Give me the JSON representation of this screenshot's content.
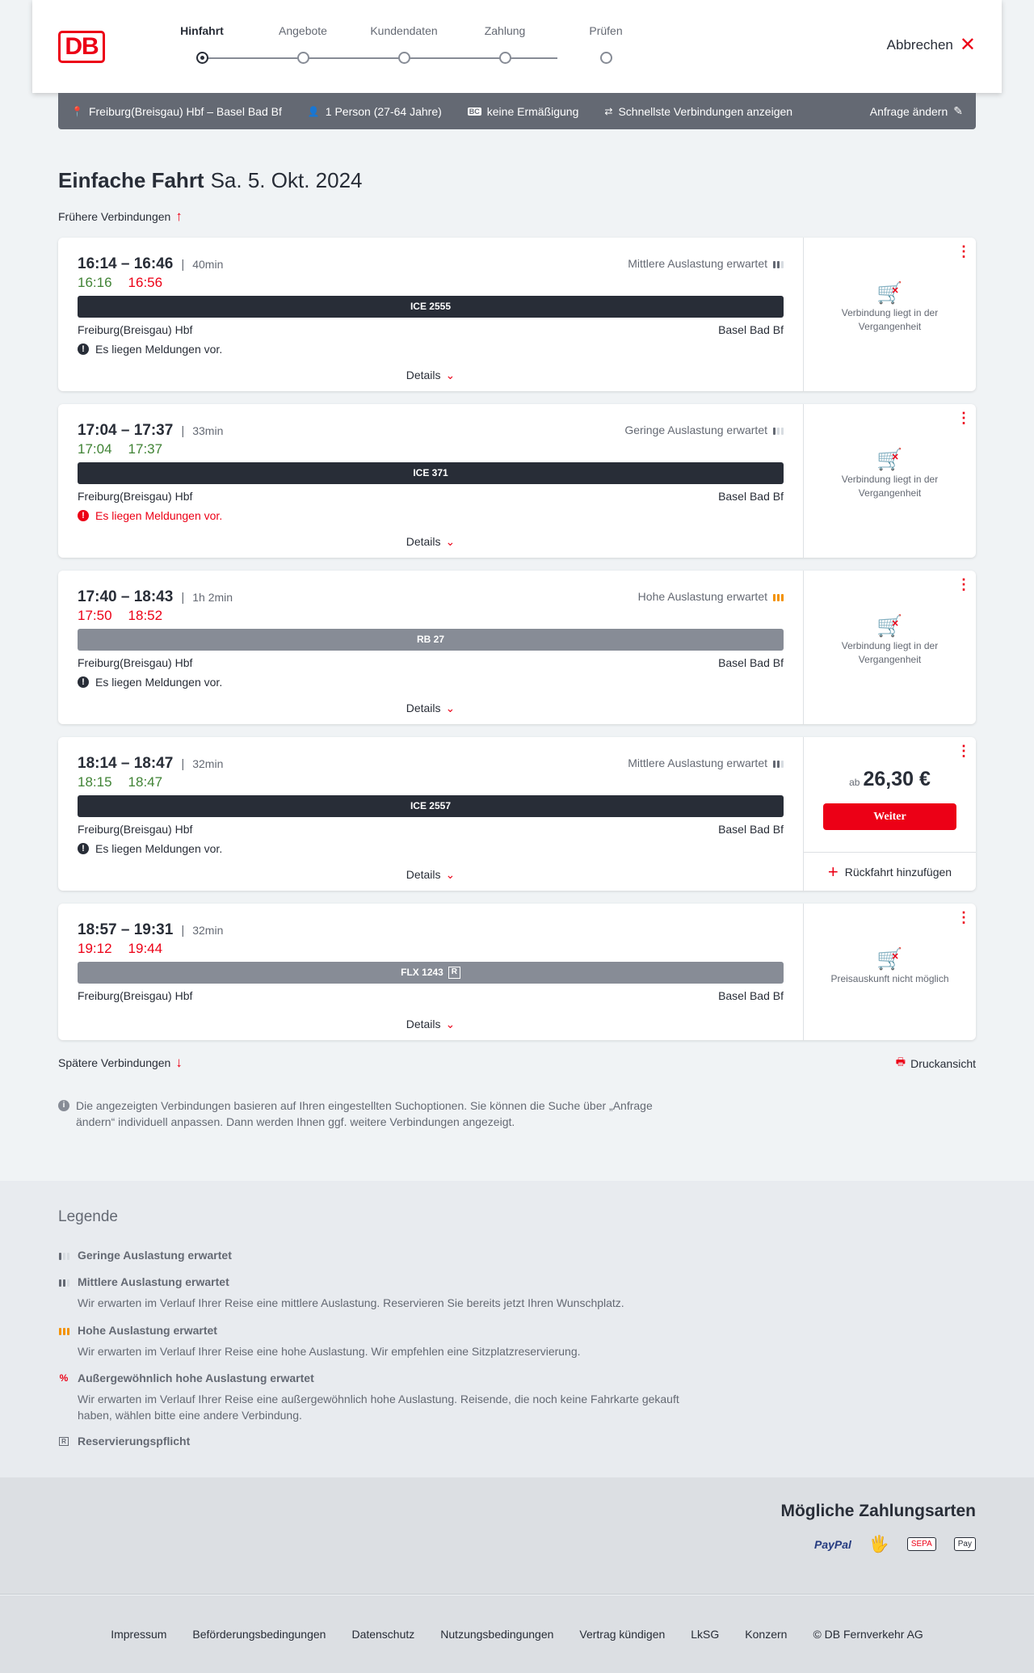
{
  "header": {
    "logo": "DB",
    "steps": [
      "Hinfahrt",
      "Angebote",
      "Kundendaten",
      "Zahlung",
      "Prüfen"
    ],
    "active_step": 0,
    "cancel": "Abbrechen"
  },
  "infobar": {
    "route": "Freiburg(Breisgau) Hbf – Basel Bad Bf",
    "passengers": "1 Person (27-64 Jahre)",
    "discount_badge": "BC",
    "discount": "keine Ermäßigung",
    "fastest": "Schnellste Verbindungen anzeigen",
    "edit": "Anfrage ändern"
  },
  "title": {
    "main": "Einfache Fahrt",
    "date": "Sa. 5. Okt. 2024"
  },
  "earlier": "Frühere Verbindungen",
  "later": "Spätere Verbindungen",
  "print": "Druckansicht",
  "details_label": "Details",
  "colors": {
    "accent": "#ec0016",
    "on_time": "#408335",
    "dark": "#282d37",
    "high_load": "#f39200"
  },
  "connections": [
    {
      "times": "16:14 – 16:46",
      "duration": "40min",
      "occupancy": "Mittlere Auslastung erwartet",
      "level": 2,
      "rt_dep": "16:16",
      "rt_dep_status": "ok",
      "rt_arr": "16:56",
      "rt_arr_status": "late",
      "train": "ICE 2555",
      "train_style": "dark",
      "from": "Freiburg(Breisgau) Hbf",
      "to": "Basel Bad Bf",
      "message": "Es liegen Meldungen vor.",
      "message_style": "normal",
      "status": "Verbindung liegt in der Vergangenheit"
    },
    {
      "times": "17:04 – 17:37",
      "duration": "33min",
      "occupancy": "Geringe Auslastung erwartet",
      "level": 1,
      "rt_dep": "17:04",
      "rt_dep_status": "ok",
      "rt_arr": "17:37",
      "rt_arr_status": "ok",
      "train": "ICE 371",
      "train_style": "dark",
      "from": "Freiburg(Breisgau) Hbf",
      "to": "Basel Bad Bf",
      "message": "Es liegen Meldungen vor.",
      "message_style": "red",
      "status": "Verbindung liegt in der Vergangenheit"
    },
    {
      "times": "17:40 – 18:43",
      "duration": "1h 2min",
      "occupancy": "Hohe Auslastung erwartet",
      "level": 3,
      "rt_dep": "17:50",
      "rt_dep_status": "late",
      "rt_arr": "18:52",
      "rt_arr_status": "late",
      "train": "RB 27",
      "train_style": "grey",
      "from": "Freiburg(Breisgau) Hbf",
      "to": "Basel Bad Bf",
      "message": "Es liegen Meldungen vor.",
      "message_style": "normal",
      "status": "Verbindung liegt in der Vergangenheit"
    },
    {
      "times": "18:14 – 18:47",
      "duration": "32min",
      "occupancy": "Mittlere Auslastung erwartet",
      "level": 2,
      "rt_dep": "18:15",
      "rt_dep_status": "ok",
      "rt_arr": "18:47",
      "rt_arr_status": "ok",
      "train": "ICE 2557",
      "train_style": "dark",
      "from": "Freiburg(Breisgau) Hbf",
      "to": "Basel Bad Bf",
      "message": "Es liegen Meldungen vor.",
      "message_style": "normal",
      "price_prefix": "ab",
      "price": "26,30 €",
      "button": "Weiter",
      "return": "Rückfahrt hinzufügen"
    },
    {
      "times": "18:57 – 19:31",
      "duration": "32min",
      "rt_dep": "19:12",
      "rt_dep_status": "late",
      "rt_arr": "19:44",
      "rt_arr_status": "late",
      "train": "FLX 1243",
      "train_badge": "R",
      "train_style": "grey",
      "from": "Freiburg(Breisgau) Hbf",
      "to": "Basel Bad Bf",
      "status": "Preisauskunft nicht möglich"
    }
  ],
  "note": "Die angezeigten Verbindungen basieren auf Ihren eingestellten Suchoptionen. Sie können die Suche über „Anfrage ändern“ individuell anpassen. Dann werden Ihnen ggf. weitere Verbindungen angezeigt.",
  "legend": {
    "title": "Legende",
    "items": [
      {
        "title": "Geringe Auslastung erwartet",
        "icon": "occupancy-low"
      },
      {
        "title": "Mittlere Auslastung erwartet",
        "text": "Wir erwarten im Verlauf Ihrer Reise eine mittlere Auslastung. Reservieren Sie bereits jetzt Ihren Wunschplatz.",
        "icon": "occupancy-medium"
      },
      {
        "title": "Hohe Auslastung erwartet",
        "text": "Wir erwarten im Verlauf Ihrer Reise eine hohe Auslastung. Wir empfehlen eine Sitzplatzreservierung.",
        "icon": "occupancy-high"
      },
      {
        "title": "Außergewöhnlich hohe Auslastung erwartet",
        "text": "Wir erwarten im Verlauf Ihrer Reise eine außergewöhnlich hohe Auslastung. Reisende, die noch keine Fahrkarte gekauft haben, wählen bitte eine andere Verbindung.",
        "icon": "occupancy-exceptional"
      },
      {
        "title": "Reservierungspflicht",
        "icon": "reservation-required"
      }
    ]
  },
  "payment": {
    "title": "Mögliche Zahlungsarten",
    "methods": [
      "PayPal",
      "SEPA",
      "Pay"
    ]
  },
  "footer": [
    "Impressum",
    "Beförderungsbedingungen",
    "Datenschutz",
    "Nutzungsbedingungen",
    "Vertrag kündigen",
    "LkSG",
    "Konzern",
    "© DB Fernverkehr AG"
  ]
}
